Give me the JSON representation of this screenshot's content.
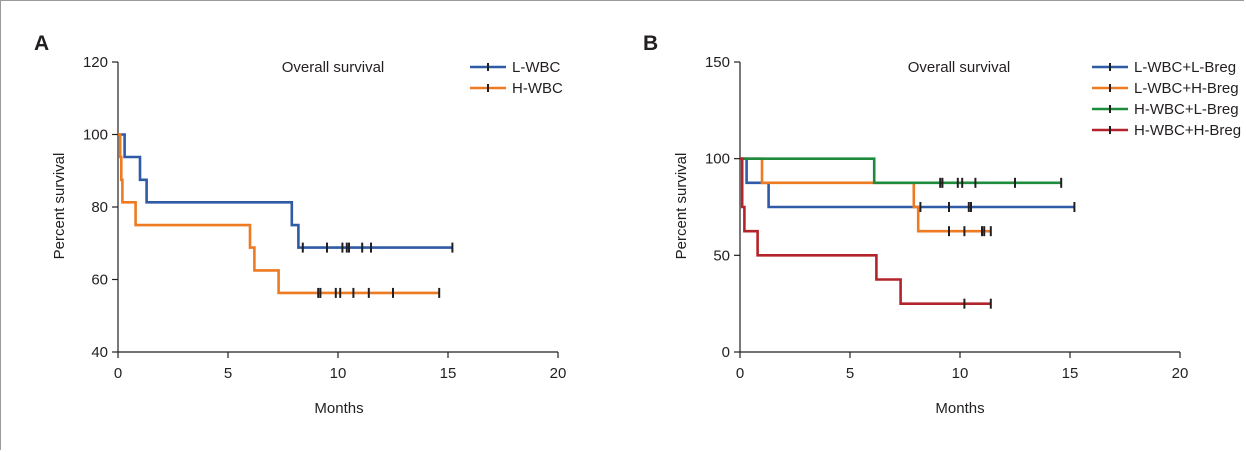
{
  "chart_data": [
    {
      "panel_label": "A",
      "type": "line",
      "step": true,
      "title": "Overall survival",
      "xlabel": "Months",
      "ylabel": "Percent survival",
      "xlim": [
        0,
        20
      ],
      "ylim": [
        40,
        120
      ],
      "xticks": [
        0,
        5,
        10,
        15,
        20
      ],
      "yticks": [
        40,
        60,
        80,
        100,
        120
      ],
      "grid": false,
      "legend_position": "top-right",
      "series": [
        {
          "name": "L-WBC",
          "color": "#2e5aa6",
          "steps": [
            [
              0,
              100
            ],
            [
              0.3,
              100
            ],
            [
              0.3,
              93.8
            ],
            [
              1.0,
              93.8
            ],
            [
              1.0,
              87.5
            ],
            [
              1.3,
              87.5
            ],
            [
              1.3,
              81.3
            ],
            [
              7.9,
              81.3
            ],
            [
              7.9,
              75.0
            ],
            [
              8.2,
              75.0
            ],
            [
              8.2,
              68.8
            ],
            [
              15.2,
              68.8
            ]
          ],
          "censored": [
            [
              8.4,
              68.8
            ],
            [
              9.5,
              68.8
            ],
            [
              10.2,
              68.8
            ],
            [
              10.4,
              68.8
            ],
            [
              10.5,
              68.8
            ],
            [
              11.1,
              68.8
            ],
            [
              11.5,
              68.8
            ],
            [
              15.2,
              68.8
            ]
          ]
        },
        {
          "name": "H-WBC",
          "color": "#ee7a21",
          "steps": [
            [
              0,
              100
            ],
            [
              0.1,
              100
            ],
            [
              0.1,
              93.8
            ],
            [
              0.15,
              93.8
            ],
            [
              0.15,
              87.5
            ],
            [
              0.2,
              87.5
            ],
            [
              0.2,
              81.3
            ],
            [
              0.8,
              81.3
            ],
            [
              0.8,
              75.0
            ],
            [
              6.0,
              75.0
            ],
            [
              6.0,
              68.8
            ],
            [
              6.2,
              68.8
            ],
            [
              6.2,
              62.5
            ],
            [
              7.3,
              62.5
            ],
            [
              7.3,
              56.3
            ],
            [
              14.6,
              56.3
            ]
          ],
          "censored": [
            [
              9.1,
              56.3
            ],
            [
              9.2,
              56.3
            ],
            [
              9.9,
              56.3
            ],
            [
              10.1,
              56.3
            ],
            [
              10.7,
              56.3
            ],
            [
              11.4,
              56.3
            ],
            [
              12.5,
              56.3
            ],
            [
              14.6,
              56.3
            ]
          ]
        }
      ]
    },
    {
      "panel_label": "B",
      "type": "line",
      "step": true,
      "title": "Overall survival",
      "xlabel": "Months",
      "ylabel": "Percent survival",
      "xlim": [
        0,
        20
      ],
      "ylim": [
        0,
        150
      ],
      "xticks": [
        0,
        5,
        10,
        15,
        20
      ],
      "yticks": [
        0,
        50,
        100,
        150
      ],
      "grid": false,
      "legend_position": "top-right",
      "series": [
        {
          "name": "L-WBC+L-Breg",
          "color": "#2e5aa6",
          "steps": [
            [
              0,
              100
            ],
            [
              0.3,
              100
            ],
            [
              0.3,
              87.5
            ],
            [
              1.3,
              87.5
            ],
            [
              1.3,
              75.0
            ],
            [
              15.2,
              75.0
            ]
          ],
          "censored": [
            [
              8.2,
              75.0
            ],
            [
              9.5,
              75.0
            ],
            [
              10.4,
              75.0
            ],
            [
              10.5,
              75.0
            ],
            [
              15.2,
              75.0
            ]
          ]
        },
        {
          "name": "L-WBC+H-Breg",
          "color": "#ee7a21",
          "steps": [
            [
              0,
              100
            ],
            [
              1.0,
              100
            ],
            [
              1.0,
              87.5
            ],
            [
              7.9,
              87.5
            ],
            [
              7.9,
              75.0
            ],
            [
              8.1,
              75.0
            ],
            [
              8.1,
              62.5
            ],
            [
              11.4,
              62.5
            ]
          ],
          "censored": [
            [
              9.5,
              62.5
            ],
            [
              10.2,
              62.5
            ],
            [
              11.0,
              62.5
            ],
            [
              11.1,
              62.5
            ],
            [
              11.4,
              62.5
            ]
          ]
        },
        {
          "name": "H-WBC+L-Breg",
          "color": "#1e8a3c",
          "steps": [
            [
              0,
              100
            ],
            [
              6.1,
              100
            ],
            [
              6.1,
              87.5
            ],
            [
              14.6,
              87.5
            ]
          ],
          "censored": [
            [
              9.1,
              87.5
            ],
            [
              9.2,
              87.5
            ],
            [
              9.9,
              87.5
            ],
            [
              10.1,
              87.5
            ],
            [
              10.7,
              87.5
            ],
            [
              12.5,
              87.5
            ],
            [
              14.6,
              87.5
            ]
          ]
        },
        {
          "name": "H-WBC+H-Breg",
          "color": "#b3232b",
          "steps": [
            [
              0,
              100
            ],
            [
              0.1,
              100
            ],
            [
              0.1,
              75.0
            ],
            [
              0.2,
              75.0
            ],
            [
              0.2,
              62.5
            ],
            [
              0.8,
              62.5
            ],
            [
              0.8,
              50.0
            ],
            [
              6.2,
              50.0
            ],
            [
              6.2,
              37.5
            ],
            [
              7.3,
              37.5
            ],
            [
              7.3,
              25.0
            ],
            [
              11.4,
              25.0
            ]
          ],
          "censored": [
            [
              10.2,
              25.0
            ],
            [
              11.4,
              25.0
            ]
          ]
        }
      ]
    }
  ]
}
